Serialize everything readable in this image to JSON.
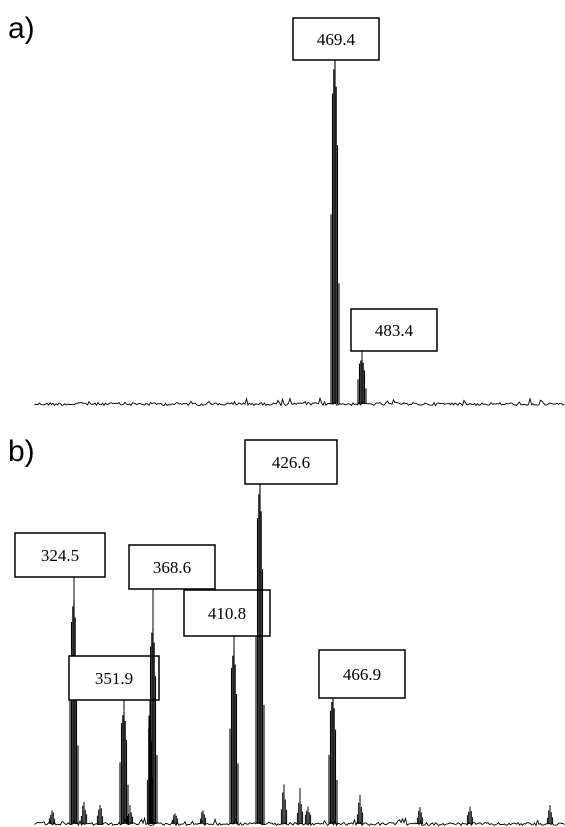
{
  "chart_data": [
    {
      "type": "spectrum",
      "panel_label": "a)",
      "title": "",
      "xlabel": "",
      "ylabel": "",
      "axes_visible": false,
      "grid": false,
      "baseline": true,
      "labeled_peaks": [
        {
          "label": "469.4",
          "mz": 469.4,
          "relative_intensity": 1.0
        },
        {
          "label": "483.4",
          "mz": 483.4,
          "relative_intensity": 0.13
        }
      ],
      "x_range": [
        335,
        560
      ]
    },
    {
      "type": "spectrum",
      "panel_label": "b)",
      "title": "",
      "xlabel": "",
      "ylabel": "",
      "axes_visible": false,
      "grid": false,
      "baseline": true,
      "labeled_peaks": [
        {
          "label": "324.5",
          "mz": 324.5,
          "relative_intensity": 0.66
        },
        {
          "label": "351.9",
          "mz": 351.9,
          "relative_intensity": 0.33
        },
        {
          "label": "368.6",
          "mz": 368.6,
          "relative_intensity": 0.58
        },
        {
          "label": "410.8",
          "mz": 410.8,
          "relative_intensity": 0.51
        },
        {
          "label": "426.6",
          "mz": 426.6,
          "relative_intensity": 1.0
        },
        {
          "label": "466.9",
          "mz": 466.9,
          "relative_intensity": 0.37
        }
      ],
      "x_range": [
        300,
        560
      ]
    }
  ]
}
